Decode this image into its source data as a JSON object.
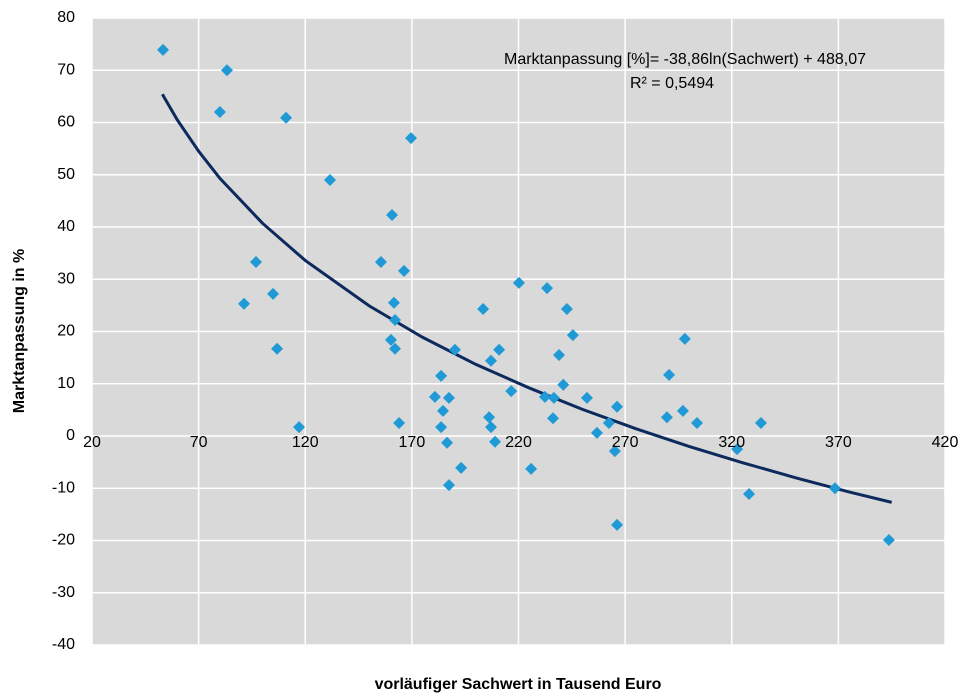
{
  "chart_data": {
    "type": "scatter",
    "x_label": "vorläufiger Sachwert in Tausend Euro",
    "y_label": "Marktanpassung in %",
    "annotations": [
      "Marktanpassung [%]= -38,86ln(Sachwert) + 488,07",
      "R² = 0,5494"
    ],
    "points": {
      "color": "#1f9ad6",
      "x": [
        53.3,
        83.3,
        80.0,
        111.0,
        169.6,
        131.6,
        160.7,
        96.9,
        155.5,
        166.3,
        91.3,
        104.9,
        161.6,
        162.1,
        106.8,
        160.2,
        162.1,
        117.1,
        220.2,
        233.4,
        203.4,
        242.7,
        245.5,
        298.0,
        190.2,
        210.9,
        207.1,
        239.0,
        290.6,
        183.7,
        241.0,
        216.6,
        180.8,
        187.4,
        232.4,
        236.6,
        252.1,
        184.6,
        266.2,
        297.1,
        164.0,
        206.2,
        236.2,
        289.6,
        303.7,
        333.7,
        183.7,
        207.1,
        262.4,
        256.8,
        322.5,
        265.2,
        186.5,
        209.0,
        193.1,
        225.9,
        187.4,
        328.1,
        368.4,
        266.2,
        393.7
      ],
      "values": [
        73.9,
        70.0,
        62.0,
        60.9,
        57.0,
        49.0,
        42.3,
        33.3,
        33.3,
        31.6,
        25.3,
        27.2,
        25.5,
        22.2,
        16.7,
        18.4,
        16.7,
        1.7,
        29.3,
        28.3,
        24.3,
        24.3,
        19.3,
        18.6,
        16.5,
        16.5,
        14.4,
        15.5,
        11.7,
        11.5,
        9.8,
        8.6,
        7.5,
        7.3,
        7.5,
        7.3,
        7.3,
        4.8,
        5.6,
        4.8,
        2.5,
        3.6,
        3.4,
        3.6,
        2.5,
        2.5,
        1.7,
        1.7,
        2.5,
        0.6,
        -2.5,
        -2.9,
        -1.3,
        -1.1,
        -6.1,
        -6.3,
        -9.4,
        -11.1,
        -10.0,
        -17.0,
        -19.9
      ]
    },
    "trendline": {
      "color": "#0d2a5c",
      "x": [
        53,
        60,
        70,
        80,
        100,
        120,
        150,
        175,
        200,
        225,
        250,
        275,
        300,
        325,
        350,
        375,
        395
      ],
      "values": [
        65.4,
        60.5,
        54.5,
        49.3,
        40.7,
        33.6,
        24.9,
        18.9,
        13.7,
        9.2,
        5.1,
        1.4,
        -2.0,
        -5.1,
        -8.0,
        -10.7,
        -12.7
      ]
    },
    "xlim": [
      20,
      420
    ],
    "xticks": [
      20,
      70,
      120,
      170,
      220,
      270,
      320,
      370,
      420
    ],
    "ylim": [
      -40,
      80
    ],
    "yticks": [
      -40,
      -30,
      -20,
      -10,
      0,
      10,
      20,
      30,
      40,
      50,
      60,
      70,
      80
    ],
    "grid": true
  }
}
